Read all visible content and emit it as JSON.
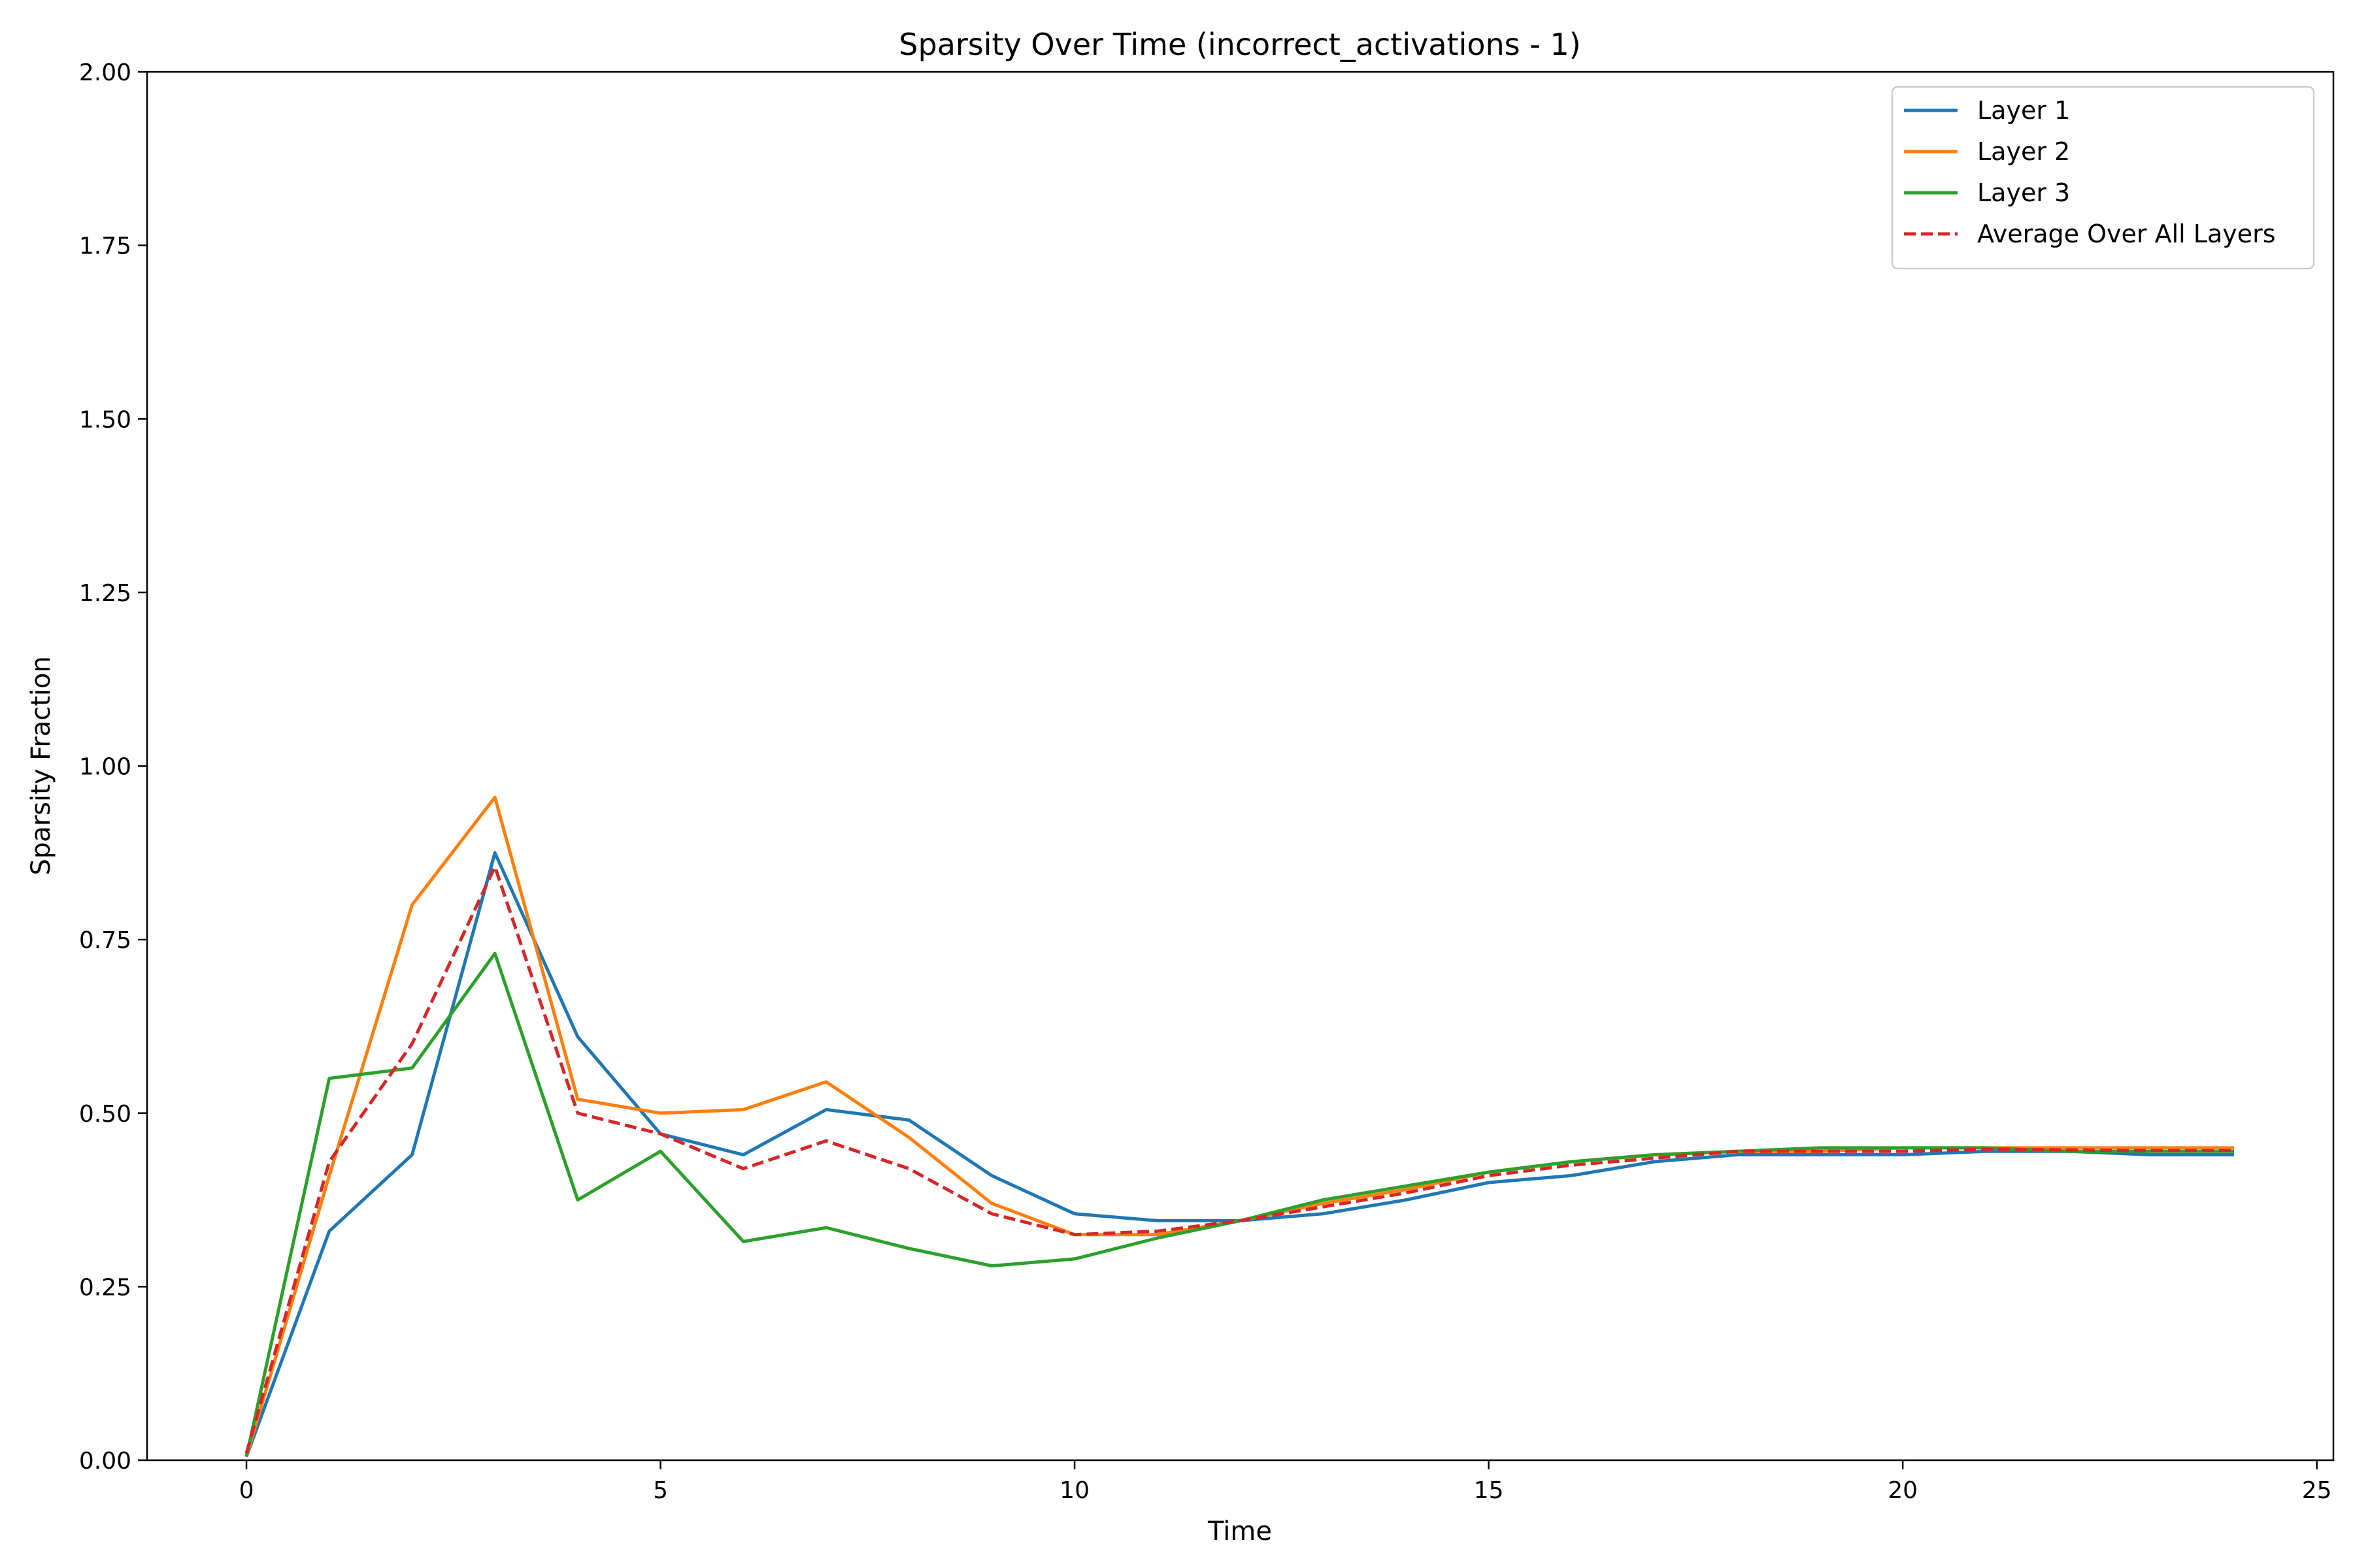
{
  "chart_data": {
    "type": "line",
    "title": "Sparsity Over Time (incorrect_activations - 1)",
    "xlabel": "Time",
    "ylabel": "Sparsity Fraction",
    "xlim": [
      -1.2,
      25.2
    ],
    "ylim": [
      0,
      2
    ],
    "xticks": [
      0,
      5,
      10,
      15,
      20,
      25
    ],
    "xtick_labels": [
      "0",
      "5",
      "10",
      "15",
      "20",
      "25"
    ],
    "yticks": [
      0,
      0.25,
      0.5,
      0.75,
      1.0,
      1.25,
      1.5,
      1.75,
      2.0
    ],
    "ytick_labels": [
      "0.00",
      "0.25",
      "0.50",
      "0.75",
      "1.00",
      "1.25",
      "1.50",
      "1.75",
      "2.00"
    ],
    "grid": false,
    "legend_position": "top-right",
    "x": [
      0,
      1,
      2,
      3,
      4,
      5,
      6,
      7,
      8,
      9,
      10,
      11,
      12,
      13,
      14,
      15,
      16,
      17,
      18,
      19,
      20,
      21,
      22,
      23,
      24
    ],
    "series": [
      {
        "name": "Layer 1",
        "color": "#1f77b4",
        "dash": "solid",
        "values": [
          0.005,
          0.33,
          0.44,
          0.875,
          0.61,
          0.47,
          0.44,
          0.505,
          0.49,
          0.41,
          0.355,
          0.345,
          0.345,
          0.355,
          0.375,
          0.4,
          0.41,
          0.43,
          0.44,
          0.44,
          0.44,
          0.445,
          0.445,
          0.44,
          0.44
        ]
      },
      {
        "name": "Layer 2",
        "color": "#ff7f0e",
        "dash": "solid",
        "values": [
          0.005,
          0.41,
          0.8,
          0.955,
          0.52,
          0.5,
          0.505,
          0.545,
          0.465,
          0.37,
          0.325,
          0.325,
          0.345,
          0.37,
          0.39,
          0.415,
          0.43,
          0.44,
          0.445,
          0.445,
          0.45,
          0.45,
          0.45,
          0.45,
          0.45
        ]
      },
      {
        "name": "Layer 3",
        "color": "#2ca02c",
        "dash": "solid",
        "values": [
          0.005,
          0.55,
          0.565,
          0.73,
          0.375,
          0.445,
          0.315,
          0.335,
          0.305,
          0.28,
          0.29,
          0.32,
          0.345,
          0.375,
          0.395,
          0.415,
          0.43,
          0.44,
          0.445,
          0.45,
          0.45,
          0.45,
          0.445,
          0.445,
          0.445
        ]
      },
      {
        "name": "Average Over All Layers",
        "color": "#d62728",
        "dash": "dashed",
        "values": [
          0.01,
          0.43,
          0.6,
          0.855,
          0.5,
          0.47,
          0.42,
          0.46,
          0.42,
          0.355,
          0.325,
          0.33,
          0.345,
          0.365,
          0.385,
          0.41,
          0.425,
          0.435,
          0.445,
          0.445,
          0.445,
          0.448,
          0.447,
          0.446,
          0.446
        ]
      }
    ]
  }
}
